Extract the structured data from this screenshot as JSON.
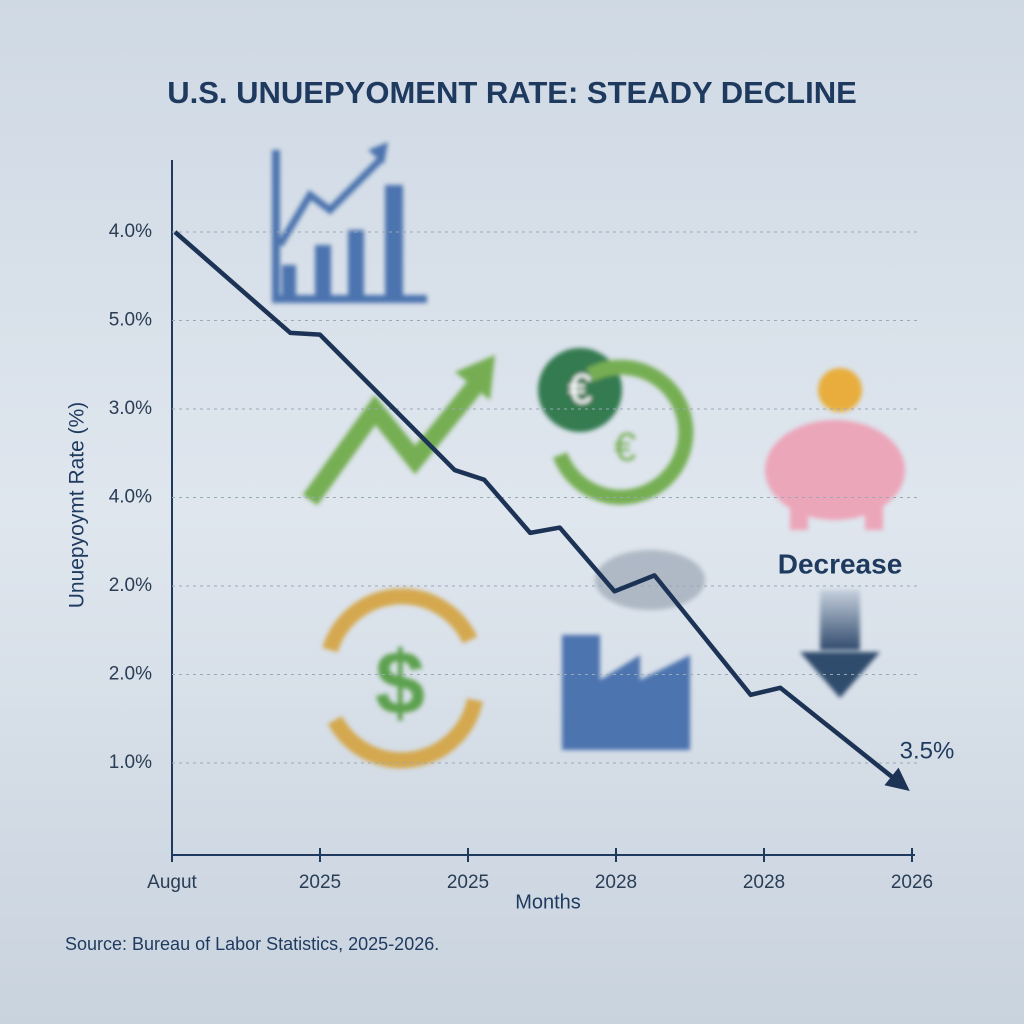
{
  "chart_data": {
    "type": "line",
    "title": "U.S. UNUEPYOMENT RATE: STEADY DECLINE",
    "x_label": "Months",
    "y_label": "Unuepyoymt Rate (%)",
    "source": "Source: Bureau of Labor Statistics, 2025-2026.",
    "annotations": [
      "Decrease",
      "3.5%"
    ],
    "xlim": [
      0,
      5
    ],
    "xticks": [
      {
        "value": 0,
        "label": "Augut"
      },
      {
        "value": 1,
        "label": "2025"
      },
      {
        "value": 2,
        "label": "2025"
      },
      {
        "value": 3,
        "label": "2028"
      },
      {
        "value": 4,
        "label": "2028"
      },
      {
        "value": 5,
        "label": "2026"
      }
    ],
    "ylim": [
      0,
      8
    ],
    "yticks": [
      {
        "value": 7,
        "label": "4.0%"
      },
      {
        "value": 6,
        "label": "5.0%"
      },
      {
        "value": 5,
        "label": "3.0%"
      },
      {
        "value": 4,
        "label": "4.0%"
      },
      {
        "value": 3,
        "label": "2.0%"
      },
      {
        "value": 2,
        "label": "2.0%"
      },
      {
        "value": 1,
        "label": "1.0%"
      }
    ],
    "grid": true,
    "series": [
      {
        "color": "#1c3356",
        "x": [
          0.02,
          0.8,
          1.0,
          1.91,
          2.11,
          2.42,
          2.62,
          2.99,
          3.26,
          3.91,
          4.11,
          4.89
        ],
        "values": [
          7.0,
          5.86,
          5.84,
          4.31,
          4.2,
          3.6,
          3.66,
          2.94,
          3.12,
          1.77,
          1.85,
          0.81
        ]
      }
    ]
  }
}
